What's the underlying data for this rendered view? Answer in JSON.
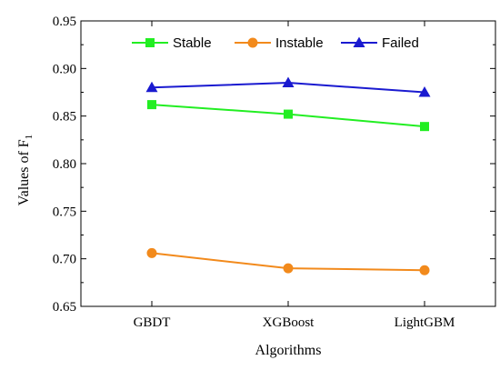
{
  "chart_data": {
    "type": "line",
    "categories": [
      "GBDT",
      "XGBoost",
      "LightGBM"
    ],
    "series": [
      {
        "name": "Stable",
        "values": [
          0.862,
          0.852,
          0.839
        ],
        "color": "#22ee22",
        "marker": "square"
      },
      {
        "name": "Instable",
        "values": [
          0.706,
          0.69,
          0.688
        ],
        "color": "#f28a1c",
        "marker": "circle"
      },
      {
        "name": "Failed",
        "values": [
          0.88,
          0.885,
          0.875
        ],
        "color": "#1a1ad0",
        "marker": "triangle"
      }
    ],
    "xlabel": "Algorithms",
    "ylabel": "Values of F",
    "ylabel_subscript": "1",
    "ylim": [
      0.65,
      0.95
    ],
    "yticks": [
      "0.65",
      "0.70",
      "0.75",
      "0.80",
      "0.85",
      "0.90",
      "0.95"
    ],
    "grid": false,
    "legend_position": "top"
  }
}
